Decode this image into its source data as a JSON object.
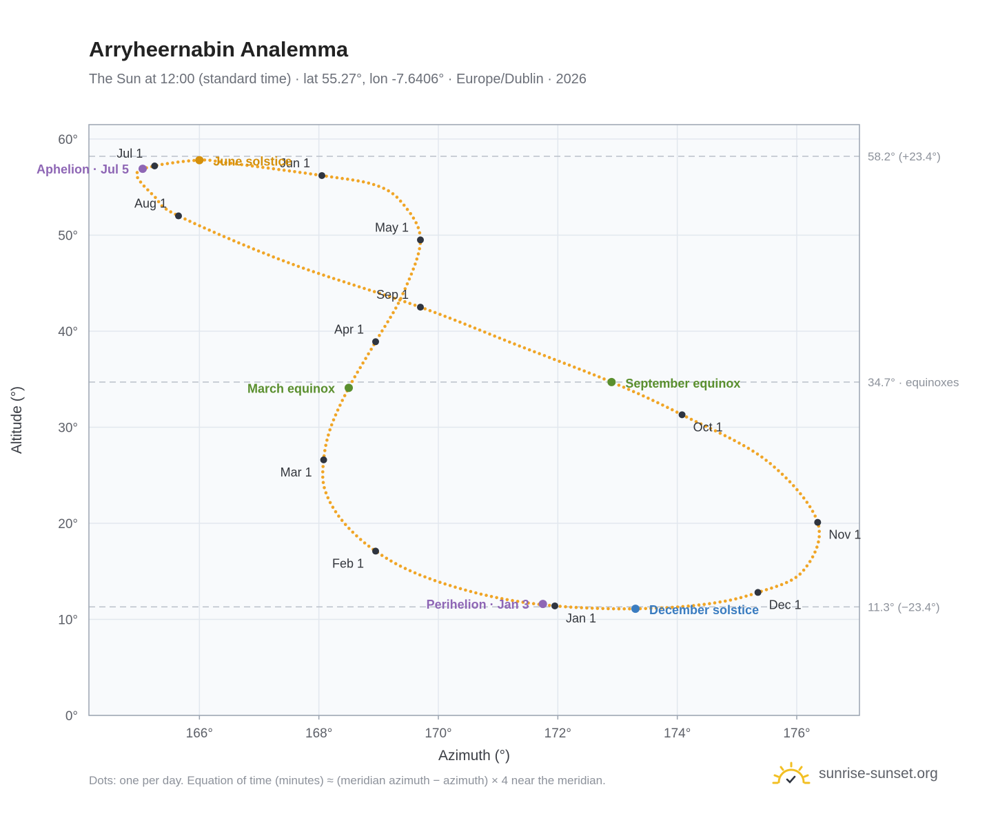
{
  "title": "Arryheernabin Analemma",
  "subtitle": "The Sun at 12:00 (standard time) · lat 55.27°, lon -7.6406° · Europe/Dublin · 2026",
  "footnote": "Dots: one per day. Equation of time (minutes) ≈ (meridian azimuth − azimuth) × 4 near the meridian.",
  "brand": {
    "text": "sunrise-sunset.org",
    "icon": "sun-check-icon",
    "icon_color": "#f2bf22"
  },
  "chart_data": {
    "type": "scatter",
    "xlabel": "Azimuth (°)",
    "ylabel": "Altitude (°)",
    "xlim": [
      164.15,
      177.05
    ],
    "ylim": [
      0,
      61.5
    ],
    "x_ticks": [
      {
        "value": 166,
        "label": "166°"
      },
      {
        "value": 168,
        "label": "168°"
      },
      {
        "value": 170,
        "label": "170°"
      },
      {
        "value": 172,
        "label": "172°"
      },
      {
        "value": 174,
        "label": "174°"
      },
      {
        "value": 176,
        "label": "176°"
      }
    ],
    "y_ticks": [
      {
        "value": 0,
        "label": "0°"
      },
      {
        "value": 10,
        "label": "10°"
      },
      {
        "value": 20,
        "label": "20°"
      },
      {
        "value": 30,
        "label": "30°"
      },
      {
        "value": 40,
        "label": "40°"
      },
      {
        "value": 50,
        "label": "50°"
      },
      {
        "value": 60,
        "label": "60°"
      }
    ],
    "grid": true,
    "reference_lines": [
      {
        "y": 58.2,
        "label": "58.2° (+23.4°)"
      },
      {
        "y": 34.7,
        "label": "34.7° · equinoxes"
      },
      {
        "y": 11.3,
        "label": "11.3° (−23.4°)"
      }
    ],
    "colors": {
      "daily": "#f0a526",
      "month": "#2f3540",
      "equinox": "#5a8f2e",
      "june_solstice": "#d4900c",
      "december_solstice": "#3a7cc0",
      "apsis": "#8e66b5",
      "plot_bg": "#f8fafc",
      "frame": "#9ba4b1",
      "grid": "#e2e7ee",
      "ref": "#b9c0c9"
    },
    "series": [
      {
        "name": "daily",
        "points": [
          [
            171.95,
            11.4
          ],
          [
            170.8,
            12.5
          ],
          [
            169.7,
            14.6
          ],
          [
            168.95,
            17.1
          ],
          [
            168.4,
            20.2
          ],
          [
            168.1,
            23.5
          ],
          [
            168.08,
            26.6
          ],
          [
            168.2,
            30.0
          ],
          [
            168.5,
            34.1
          ],
          [
            168.95,
            38.9
          ],
          [
            169.4,
            43.8
          ],
          [
            169.7,
            49.5
          ],
          [
            169.4,
            53.3
          ],
          [
            168.95,
            55.2
          ],
          [
            168.05,
            56.2
          ],
          [
            166.5,
            57.5
          ],
          [
            166.0,
            57.8
          ],
          [
            165.25,
            57.2
          ],
          [
            164.95,
            56.3
          ],
          [
            165.25,
            54.0
          ],
          [
            165.65,
            52.0
          ],
          [
            167.5,
            47.1
          ],
          [
            169.7,
            42.5
          ],
          [
            171.3,
            38.6
          ],
          [
            172.9,
            34.7
          ],
          [
            174.08,
            31.3
          ],
          [
            175.5,
            26.5
          ],
          [
            176.35,
            20.1
          ],
          [
            176.1,
            15.0
          ],
          [
            175.35,
            12.8
          ],
          [
            174.5,
            11.6
          ],
          [
            173.3,
            11.1
          ],
          [
            171.95,
            11.4
          ]
        ]
      },
      {
        "name": "months",
        "points": [
          {
            "label": "Jan 1",
            "x": 171.95,
            "y": 11.4
          },
          {
            "label": "Feb 1",
            "x": 168.95,
            "y": 17.1
          },
          {
            "label": "Mar 1",
            "x": 168.08,
            "y": 26.6
          },
          {
            "label": "Apr 1",
            "x": 168.95,
            "y": 38.9
          },
          {
            "label": "May 1",
            "x": 169.7,
            "y": 49.5
          },
          {
            "label": "Jun 1",
            "x": 168.05,
            "y": 56.2
          },
          {
            "label": "Jul 1",
            "x": 165.25,
            "y": 57.2
          },
          {
            "label": "Aug 1",
            "x": 165.65,
            "y": 52.0
          },
          {
            "label": "Sep 1",
            "x": 169.7,
            "y": 42.5
          },
          {
            "label": "Oct 1",
            "x": 174.08,
            "y": 31.3
          },
          {
            "label": "Nov 1",
            "x": 176.35,
            "y": 20.1
          },
          {
            "label": "Dec 1",
            "x": 175.35,
            "y": 12.8
          }
        ]
      },
      {
        "name": "events",
        "points": [
          {
            "label": "March equinox",
            "x": 168.5,
            "y": 34.1,
            "color": "#5a8f2e"
          },
          {
            "label": "June solstice",
            "x": 166.0,
            "y": 57.8,
            "color": "#d4900c"
          },
          {
            "label": "September equinox",
            "x": 172.9,
            "y": 34.7,
            "color": "#5a8f2e"
          },
          {
            "label": "December solstice",
            "x": 173.3,
            "y": 11.1,
            "color": "#3a7cc0"
          },
          {
            "label": "Aphelion · Jul 5",
            "x": 165.05,
            "y": 56.9,
            "color": "#8e66b5"
          },
          {
            "label": "Perihelion · Jan 3",
            "x": 171.75,
            "y": 11.6,
            "color": "#8e66b5"
          }
        ]
      }
    ]
  }
}
